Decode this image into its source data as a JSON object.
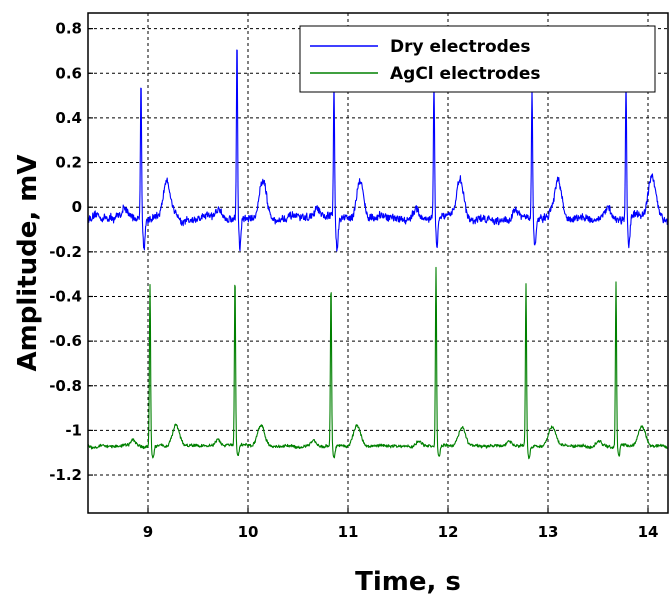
{
  "chart_data": {
    "type": "line",
    "title": "",
    "xlabel": "Time, s",
    "ylabel": "Amplitude, mV",
    "xlim": [
      8.4,
      14.2
    ],
    "ylim": [
      -1.37,
      0.87
    ],
    "grid": true,
    "legend_position": "top-right",
    "x_ticks": [
      9,
      10,
      11,
      12,
      13,
      14
    ],
    "x_tick_labels": [
      "9",
      "10",
      "11",
      "12",
      "13",
      "14"
    ],
    "y_ticks": [
      0.8,
      0.6,
      0.4,
      0.2,
      0,
      -0.2,
      -0.4,
      -0.6,
      -0.8,
      -1,
      -1.2
    ],
    "y_tick_labels": [
      "0.8",
      "0.6",
      "0.4",
      "0.2",
      "0",
      "-0.2",
      "-0.4",
      "-0.6",
      "-0.8",
      "-1",
      "-1.2"
    ],
    "series": [
      {
        "name": "Dry electrodes",
        "color": "#0000ff",
        "baseline": -0.05,
        "r_peak_times": [
          8.93,
          9.89,
          10.86,
          11.86,
          12.84,
          13.78
        ],
        "r_peak_values": [
          0.59,
          0.75,
          0.54,
          0.56,
          0.52,
          0.56
        ],
        "s_trough_value": -0.18,
        "t_wave_peak": 0.13,
        "noise": 0.03
      },
      {
        "name": "AgCl electrodes",
        "color": "#008000",
        "baseline": -1.07,
        "r_peak_times": [
          9.02,
          9.87,
          10.83,
          11.88,
          12.78,
          13.68
        ],
        "r_peak_values": [
          -0.34,
          -0.31,
          -0.34,
          -0.27,
          -0.35,
          -0.34
        ],
        "s_trough_value": -1.12,
        "t_wave_peak": -0.98,
        "noise": 0.012
      }
    ]
  }
}
